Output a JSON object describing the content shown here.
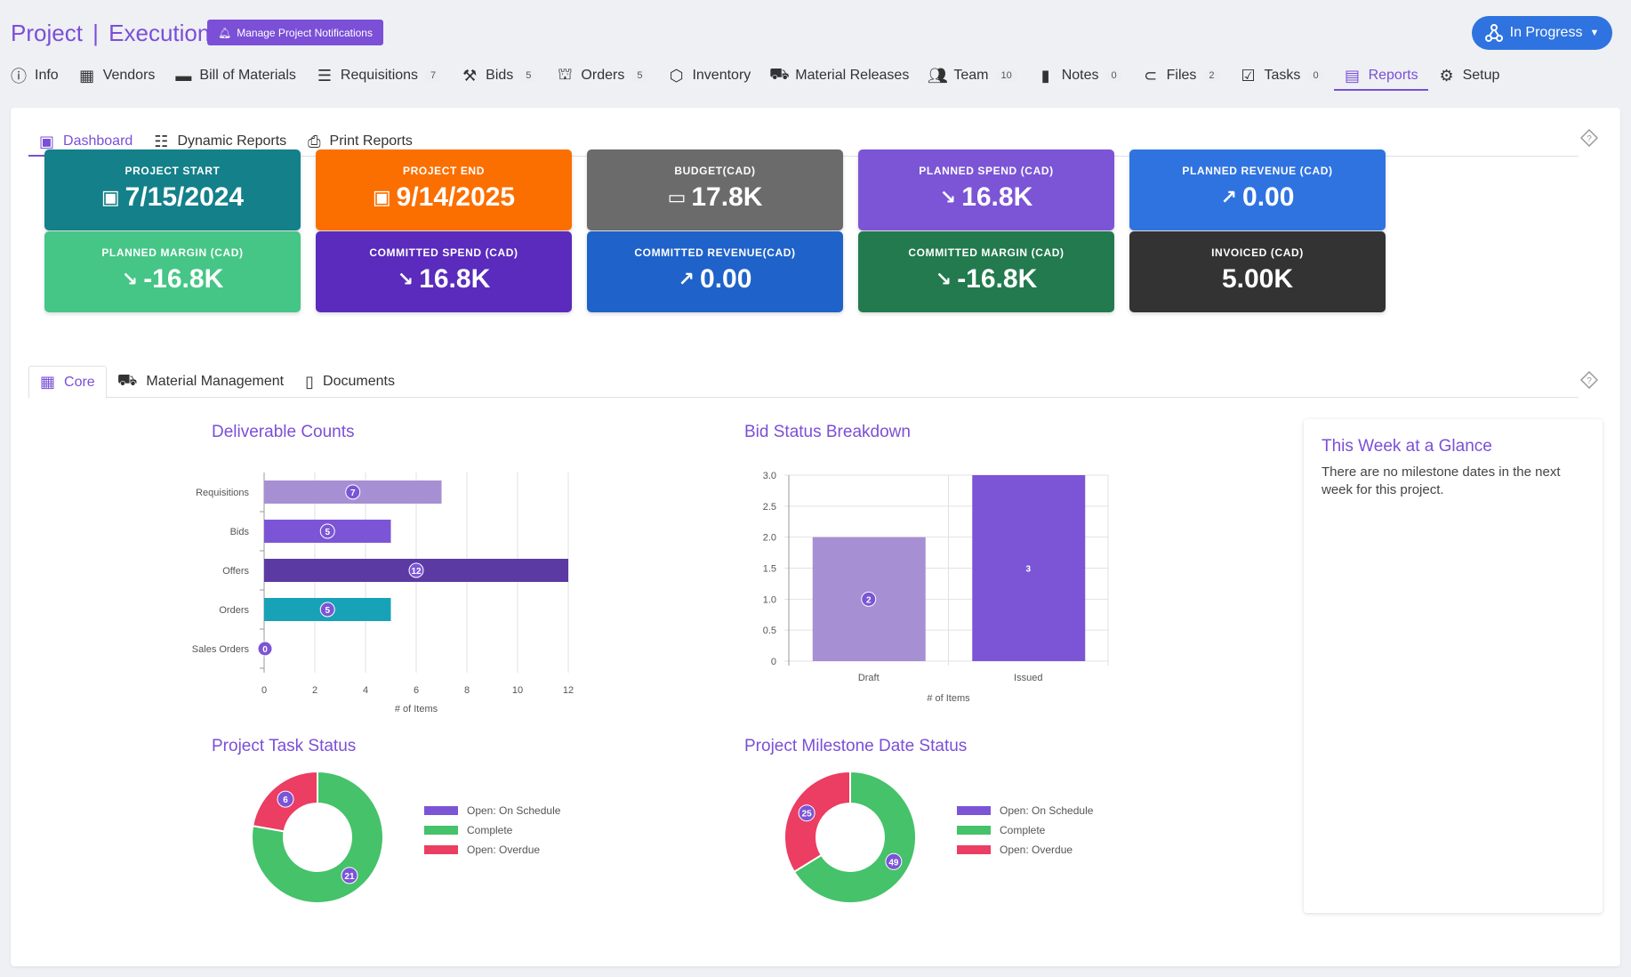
{
  "header": {
    "title_part1": "Project",
    "title_sep": "|",
    "title_part2": "Execution",
    "notify_button": "Manage Project Notifications",
    "status": "In Progress"
  },
  "nav": [
    {
      "label": "Info",
      "count": null,
      "icon": "info-icon"
    },
    {
      "label": "Vendors",
      "count": null,
      "icon": "building-icon"
    },
    {
      "label": "Bill of Materials",
      "count": null,
      "icon": "folder-icon"
    },
    {
      "label": "Requisitions",
      "count": "7",
      "icon": "list-icon"
    },
    {
      "label": "Bids",
      "count": "5",
      "icon": "gavel-icon"
    },
    {
      "label": "Orders",
      "count": "5",
      "icon": "basket-icon"
    },
    {
      "label": "Inventory",
      "count": null,
      "icon": "box-icon"
    },
    {
      "label": "Material Releases",
      "count": null,
      "icon": "truck-icon"
    },
    {
      "label": "Team",
      "count": "10",
      "icon": "users-icon"
    },
    {
      "label": "Notes",
      "count": "0",
      "icon": "note-icon"
    },
    {
      "label": "Files",
      "count": "2",
      "icon": "paperclip-icon"
    },
    {
      "label": "Tasks",
      "count": "0",
      "icon": "clipboard-check-icon"
    },
    {
      "label": "Reports",
      "count": null,
      "icon": "report-icon"
    },
    {
      "label": "Setup",
      "count": null,
      "icon": "gears-icon"
    }
  ],
  "subtabs": [
    "Dashboard",
    "Dynamic Reports",
    "Print Reports"
  ],
  "kpis": [
    {
      "label": "PROJECT START",
      "value": "7/15/2024",
      "prefix": "▣",
      "color": "#13808a"
    },
    {
      "label": "PROJECT END",
      "value": "9/14/2025",
      "prefix": "▣",
      "color": "#fb6f00"
    },
    {
      "label": "BUDGET(CAD)",
      "value": "17.8K",
      "prefix": "▭",
      "color": "#6b6b6b"
    },
    {
      "label": "PLANNED SPEND (CAD)",
      "value": "16.8K",
      "prefix": "↘",
      "color": "#7b55d6"
    },
    {
      "label": "PLANNED REVENUE (CAD)",
      "value": "0.00",
      "prefix": "↗",
      "color": "#2f73e0"
    },
    {
      "label": "PLANNED MARGIN (CAD)",
      "value": "-16.8K",
      "prefix": "↘",
      "color": "#45c686"
    },
    {
      "label": "COMMITTED SPEND (CAD)",
      "value": "16.8K",
      "prefix": "↘",
      "color": "#5a2bbd"
    },
    {
      "label": "COMMITTED REVENUE(CAD)",
      "value": "0.00",
      "prefix": "↗",
      "color": "#1f62c9"
    },
    {
      "label": "COMMITTED MARGIN (CAD)",
      "value": "-16.8K",
      "prefix": "↘",
      "color": "#227a4e"
    },
    {
      "label": "INVOICED (CAD)",
      "value": "5.00K",
      "prefix": "",
      "color": "#333333"
    }
  ],
  "coretabs": [
    "Core",
    "Material Management",
    "Documents"
  ],
  "sections": {
    "deliverables": "Deliverable Counts",
    "bids": "Bid Status Breakdown",
    "tasks": "Project Task Status",
    "milestones": "Project Milestone Date Status"
  },
  "glance": {
    "title": "This Week at a Glance",
    "body": "There are no milestone dates in the next week for this project."
  },
  "chart_data": [
    {
      "type": "bar",
      "orientation": "horizontal",
      "title": "Deliverable Counts",
      "categories": [
        "Requisitions",
        "Bids",
        "Offers",
        "Orders",
        "Sales Orders"
      ],
      "values": [
        7,
        5,
        12,
        5,
        0
      ],
      "colors": [
        "#a68fd2",
        "#7b55d6",
        "#5c3aa3",
        "#17a2b8",
        "#7b55d6"
      ],
      "xlabel": "# of Items",
      "xticks": [
        "0",
        "2",
        "4",
        "6",
        "8",
        "10",
        "12"
      ],
      "xlim": [
        0,
        12
      ],
      "grid": true
    },
    {
      "type": "bar",
      "title": "Bid Status Breakdown",
      "categories": [
        "Draft",
        "Issued"
      ],
      "values": [
        2,
        3
      ],
      "colors": [
        "#a68fd2",
        "#7b55d6"
      ],
      "xlabel": "# of Items",
      "yticks": [
        "0",
        "0.5",
        "1.0",
        "1.5",
        "2.0",
        "2.5",
        "3.0"
      ],
      "ylim": [
        0,
        3
      ],
      "grid": true
    },
    {
      "type": "pie",
      "subtype": "doughnut",
      "title": "Project Task Status",
      "labels": [
        "Open: On Schedule",
        "Complete",
        "Open: Overdue"
      ],
      "values": [
        0,
        21,
        6
      ],
      "colors": [
        "#7b55d6",
        "#45c26a",
        "#ec3d62"
      ],
      "legend": "right"
    },
    {
      "type": "pie",
      "subtype": "doughnut",
      "title": "Project Milestone Date Status",
      "labels": [
        "Open: On Schedule",
        "Complete",
        "Open: Overdue"
      ],
      "values": [
        0,
        49,
        25
      ],
      "colors": [
        "#7b55d6",
        "#45c26a",
        "#ec3d62"
      ],
      "legend": "right"
    }
  ]
}
